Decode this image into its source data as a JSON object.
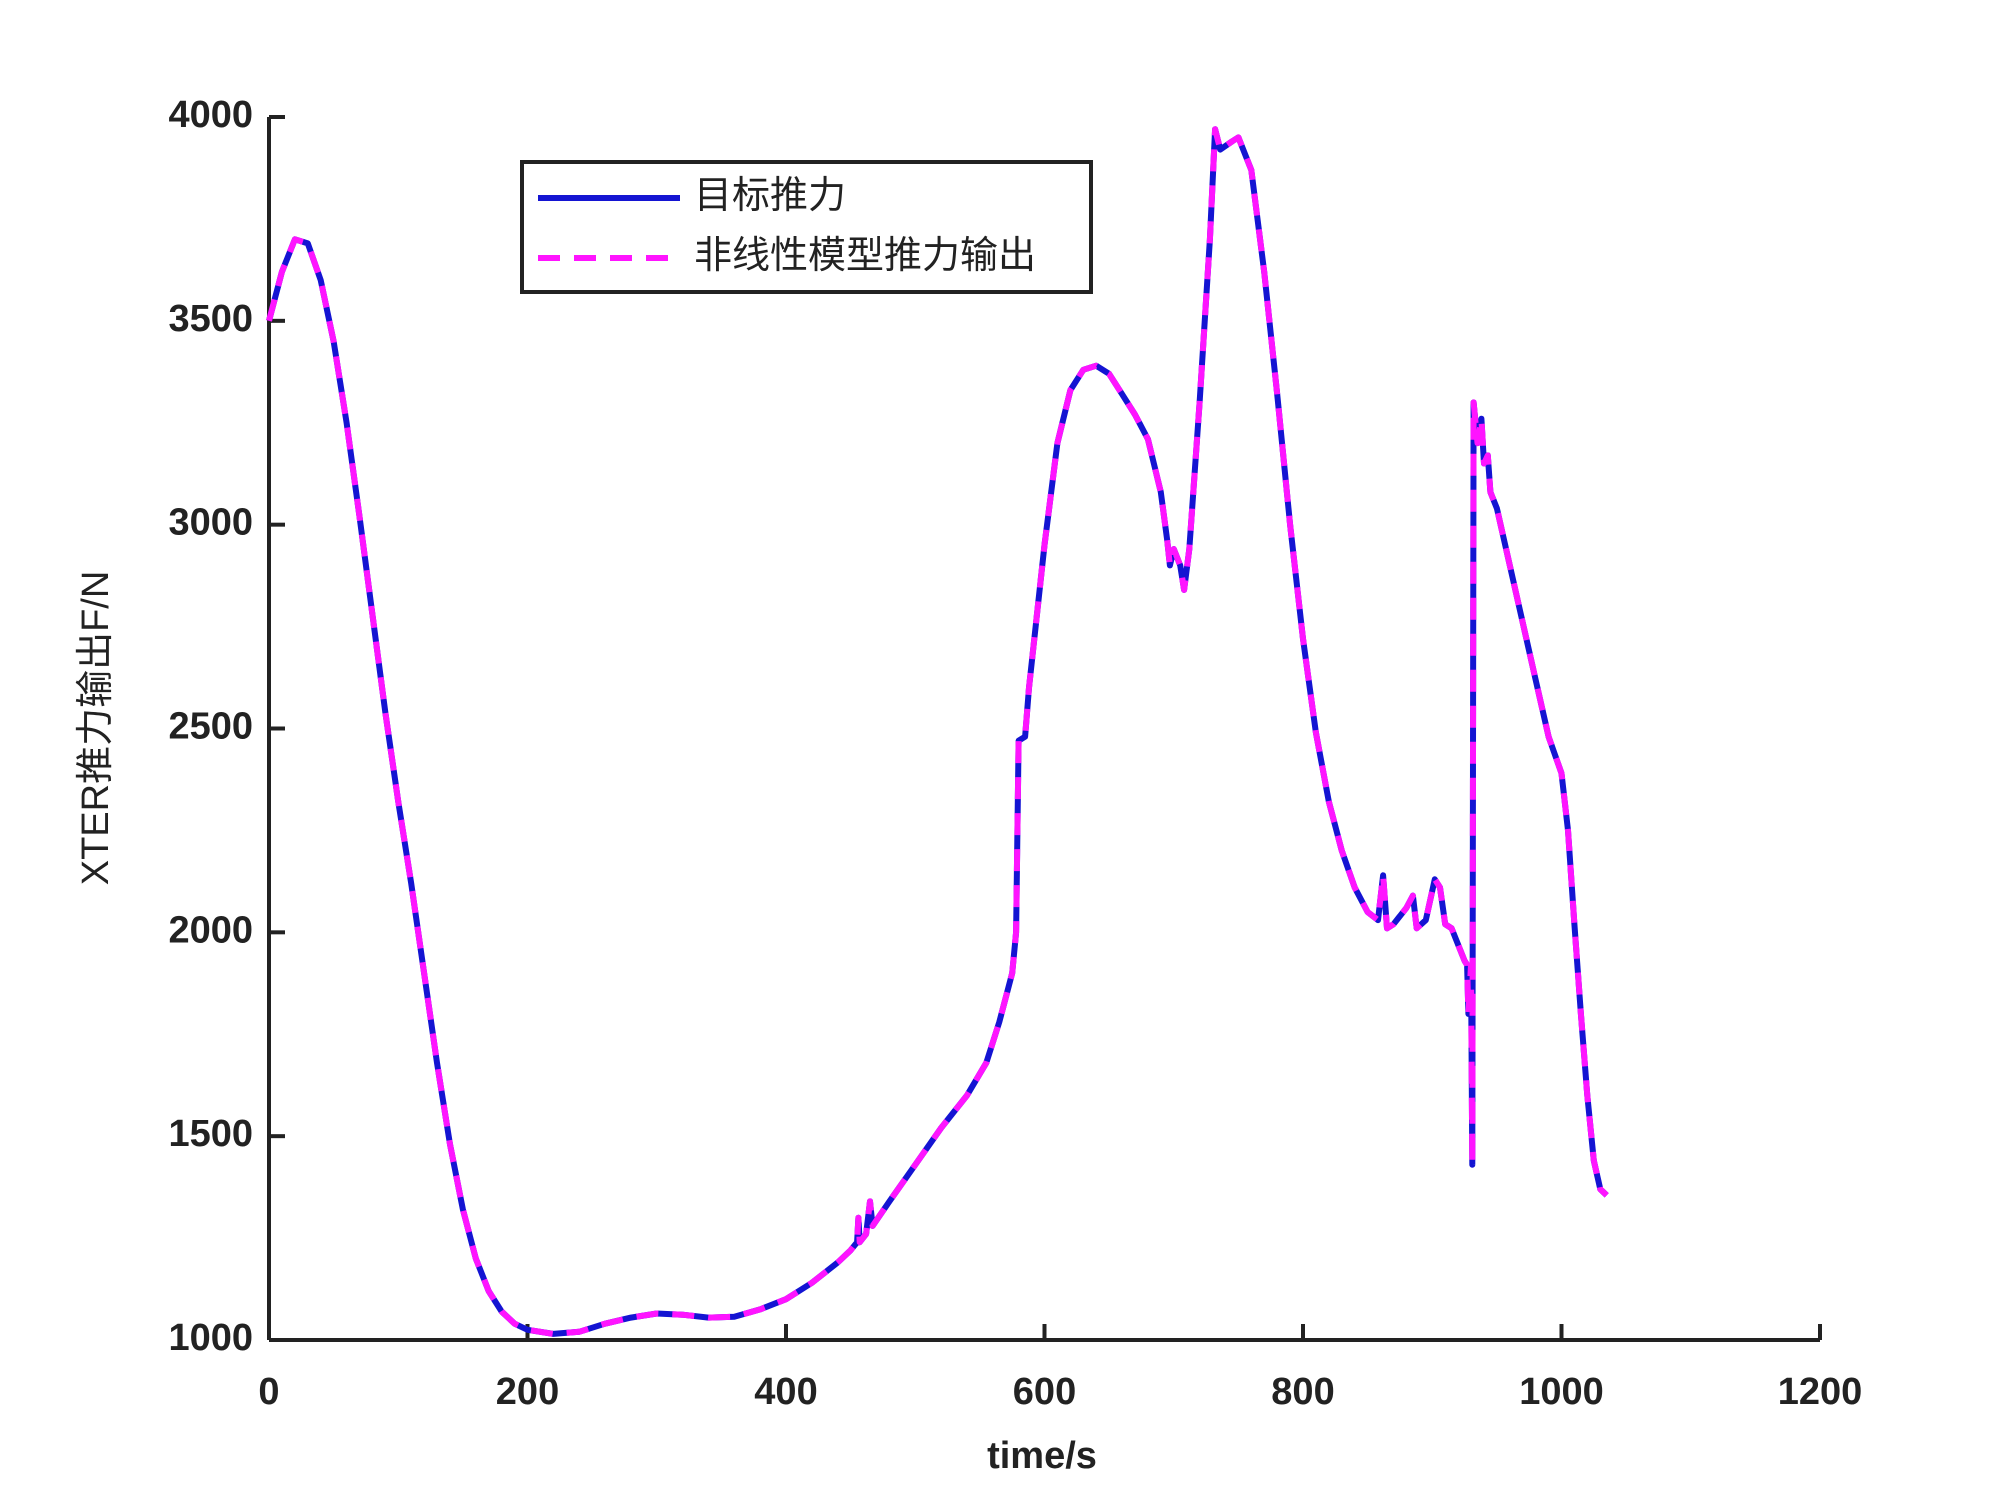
{
  "chart_data": {
    "type": "line",
    "x_label": "time/s",
    "y_label": "XTER推力输出F/N",
    "x": [
      0,
      10,
      20,
      30,
      40,
      50,
      60,
      70,
      80,
      90,
      100,
      110,
      120,
      130,
      140,
      150,
      160,
      170,
      180,
      190,
      200,
      220,
      240,
      260,
      280,
      300,
      320,
      340,
      360,
      380,
      400,
      420,
      440,
      450,
      455,
      456,
      457,
      462,
      465,
      467,
      480,
      500,
      520,
      540,
      555,
      565,
      575,
      578,
      580,
      585,
      588,
      600,
      610,
      620,
      630,
      640,
      650,
      660,
      670,
      680,
      690,
      695,
      697,
      700,
      705,
      708,
      712,
      720,
      728,
      732,
      736,
      745,
      750,
      760,
      770,
      780,
      790,
      800,
      810,
      820,
      830,
      840,
      850,
      858,
      862,
      865,
      870,
      880,
      885,
      888,
      895,
      902,
      906,
      910,
      915,
      920,
      925,
      927,
      928,
      930,
      931,
      932,
      935,
      938,
      940,
      943,
      945,
      950,
      960,
      970,
      980,
      990,
      1000,
      1005,
      1010,
      1015,
      1020,
      1025,
      1030,
      1035
    ],
    "series": [
      {
        "name": "目标推力",
        "color": "#1414d2",
        "line_style": "solid",
        "values": [
          3500,
          3620,
          3700,
          3690,
          3600,
          3450,
          3250,
          3020,
          2780,
          2540,
          2320,
          2120,
          1900,
          1680,
          1480,
          1320,
          1200,
          1120,
          1070,
          1040,
          1025,
          1015,
          1020,
          1040,
          1055,
          1065,
          1062,
          1055,
          1057,
          1075,
          1100,
          1140,
          1190,
          1220,
          1240,
          1300,
          1240,
          1260,
          1340,
          1280,
          1340,
          1430,
          1520,
          1600,
          1680,
          1780,
          1900,
          2000,
          2470,
          2480,
          2600,
          2950,
          3200,
          3330,
          3380,
          3390,
          3370,
          3320,
          3270,
          3210,
          3080,
          2960,
          2900,
          2940,
          2900,
          2840,
          2940,
          3300,
          3700,
          3970,
          3920,
          3940,
          3950,
          3870,
          3620,
          3320,
          3000,
          2720,
          2490,
          2320,
          2200,
          2110,
          2050,
          2030,
          2140,
          2010,
          2020,
          2060,
          2090,
          2010,
          2030,
          2130,
          2110,
          2020,
          2010,
          1970,
          1930,
          1920,
          1800,
          1920,
          1430,
          3300,
          3200,
          3260,
          3150,
          3170,
          3080,
          3040,
          2900,
          2760,
          2620,
          2480,
          2390,
          2250,
          2020,
          1800,
          1600,
          1440,
          1370,
          1355
        ]
      },
      {
        "name": "非线性模型推力输出",
        "color": "#ff14ff",
        "line_style": "dashed",
        "values": [
          3500,
          3620,
          3700,
          3690,
          3600,
          3450,
          3250,
          3020,
          2780,
          2540,
          2320,
          2120,
          1900,
          1680,
          1480,
          1320,
          1200,
          1120,
          1070,
          1040,
          1025,
          1015,
          1020,
          1040,
          1055,
          1065,
          1062,
          1055,
          1057,
          1075,
          1100,
          1140,
          1190,
          1220,
          1240,
          1300,
          1240,
          1260,
          1340,
          1280,
          1340,
          1430,
          1520,
          1600,
          1680,
          1780,
          1900,
          2000,
          2470,
          2480,
          2600,
          2950,
          3200,
          3330,
          3380,
          3390,
          3370,
          3320,
          3270,
          3210,
          3080,
          2960,
          2900,
          2940,
          2900,
          2840,
          2940,
          3300,
          3700,
          3970,
          3920,
          3940,
          3950,
          3870,
          3620,
          3320,
          3000,
          2720,
          2490,
          2320,
          2200,
          2110,
          2050,
          2030,
          2140,
          2010,
          2020,
          2060,
          2090,
          2010,
          2030,
          2130,
          2110,
          2020,
          2010,
          1970,
          1930,
          1920,
          1800,
          1920,
          1430,
          3300,
          3200,
          3260,
          3150,
          3170,
          3080,
          3040,
          2900,
          2760,
          2620,
          2480,
          2390,
          2250,
          2020,
          1800,
          1600,
          1440,
          1370,
          1355
        ]
      }
    ],
    "xlim": [
      0,
      1200
    ],
    "xticks": [
      0,
      200,
      400,
      600,
      800,
      1000,
      1200
    ],
    "ylim": [
      1000,
      4000
    ],
    "yticks": [
      1000,
      1500,
      2000,
      2500,
      3000,
      3500,
      4000
    ],
    "grid": false,
    "legend": "upper center"
  }
}
